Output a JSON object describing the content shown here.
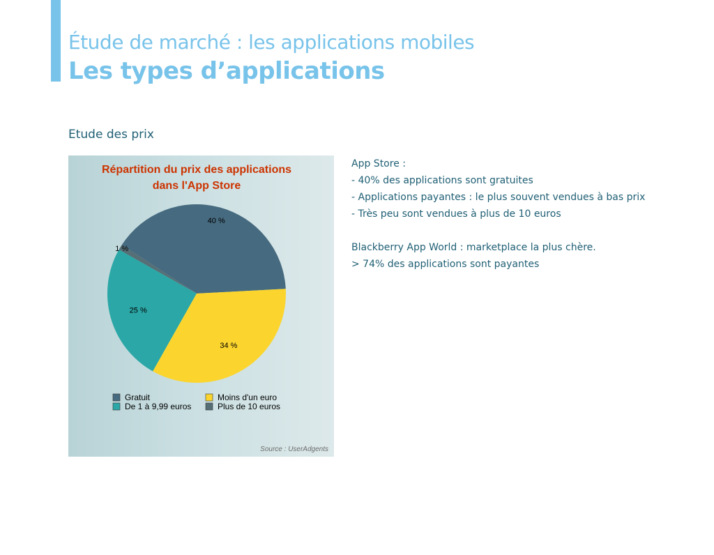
{
  "header": {
    "supertitle": "Étude de marché : les applications mobiles",
    "title": "Les types d’applications"
  },
  "section": {
    "heading": "Etude des prix"
  },
  "colors": {
    "accent": "#78c3ea",
    "text": "#1f5f74",
    "chart_title": "#cc3300"
  },
  "chart_data": {
    "type": "pie",
    "title_lines": [
      "Répartition du prix des applications",
      "dans l'App Store"
    ],
    "slices": [
      {
        "name": "Gratuit",
        "value": 40,
        "label": "40 %",
        "color": "#466a7f"
      },
      {
        "name": "Plus de 10 euros",
        "value": 1,
        "label": "1 %",
        "color": "#566f76"
      },
      {
        "name": "De 1 à 9,99 euros",
        "value": 25,
        "label": "25 %",
        "color": "#2aa7a6"
      },
      {
        "name": "Moins d'un euro",
        "value": 34,
        "label": "34 %",
        "color": "#fbd52e"
      }
    ],
    "legend": [
      {
        "name": "Gratuit",
        "color": "#466a7f"
      },
      {
        "name": "Moins d'un euro",
        "color": "#fbd52e"
      },
      {
        "name": "De 1 à 9,99 euros",
        "color": "#2aa7a6"
      },
      {
        "name": "Plus de 10 euros",
        "color": "#566f76"
      }
    ],
    "legend_placement": "bottom",
    "source": "Source : UserAdgents"
  },
  "notes": {
    "lines": [
      "App Store :",
      "- 40% des applications sont gratuites",
      "- Applications payantes : le plus souvent vendues à bas prix",
      "- Très peu sont vendues à plus de 10 euros",
      "",
      "Blackberry App World : marketplace la plus chère.",
      "> 74% des applications sont payantes"
    ]
  }
}
